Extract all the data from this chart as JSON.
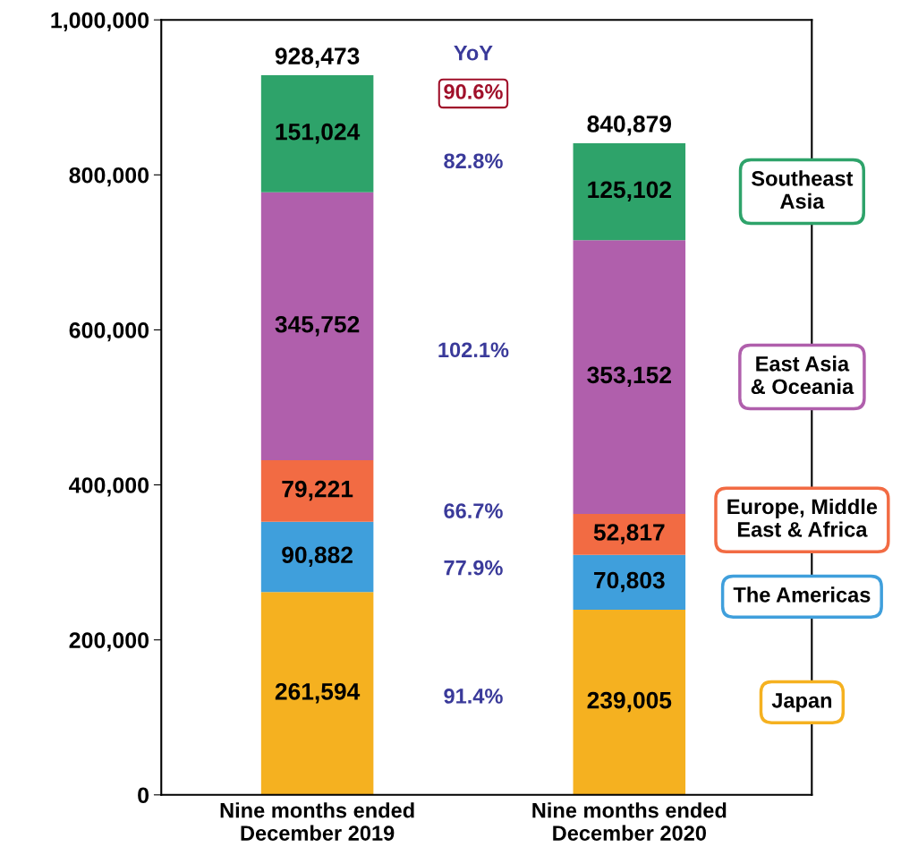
{
  "chart_data": {
    "type": "bar",
    "stacked": true,
    "categories": [
      "Nine months ended\nDecember 2019",
      "Nine months ended\nDecember 2020"
    ],
    "series": [
      {
        "name": "Japan",
        "color": "#f5b120",
        "values": [
          261594,
          239005
        ],
        "value_labels": [
          "261,594",
          "239,005"
        ]
      },
      {
        "name": "The Americas",
        "color": "#3f9fdc",
        "values": [
          90882,
          70803
        ],
        "value_labels": [
          "90,882",
          "70,803"
        ]
      },
      {
        "name": "Europe, Middle\nEast & Africa",
        "color": "#f26b43",
        "values": [
          79221,
          52817
        ],
        "value_labels": [
          "79,221",
          "52,817"
        ]
      },
      {
        "name": "East Asia\n& Oceania",
        "color": "#b05fac",
        "values": [
          345752,
          353152
        ],
        "value_labels": [
          "345,752",
          "353,152"
        ]
      },
      {
        "name": "Southeast\nAsia",
        "color": "#2ea36a",
        "values": [
          151024,
          125102
        ],
        "value_labels": [
          "151,024",
          "125,102"
        ]
      }
    ],
    "totals": [
      "928,473",
      "840,879"
    ],
    "ylim": [
      0,
      1000000
    ],
    "yticks": [
      0,
      {
        "value": 200000,
        "label": "200,000"
      },
      {
        "value": 400000,
        "label": "400,000"
      },
      {
        "value": 600000,
        "label": "600,000"
      },
      {
        "value": 800000,
        "label": "800,000"
      },
      {
        "value": 1000000,
        "label": "1,000,000"
      }
    ],
    "grid": false,
    "annotations": [
      "YoY",
      "90.6%",
      "91.4%",
      "77.9%",
      "66.7%",
      "102.1%",
      "82.8%"
    ]
  }
}
